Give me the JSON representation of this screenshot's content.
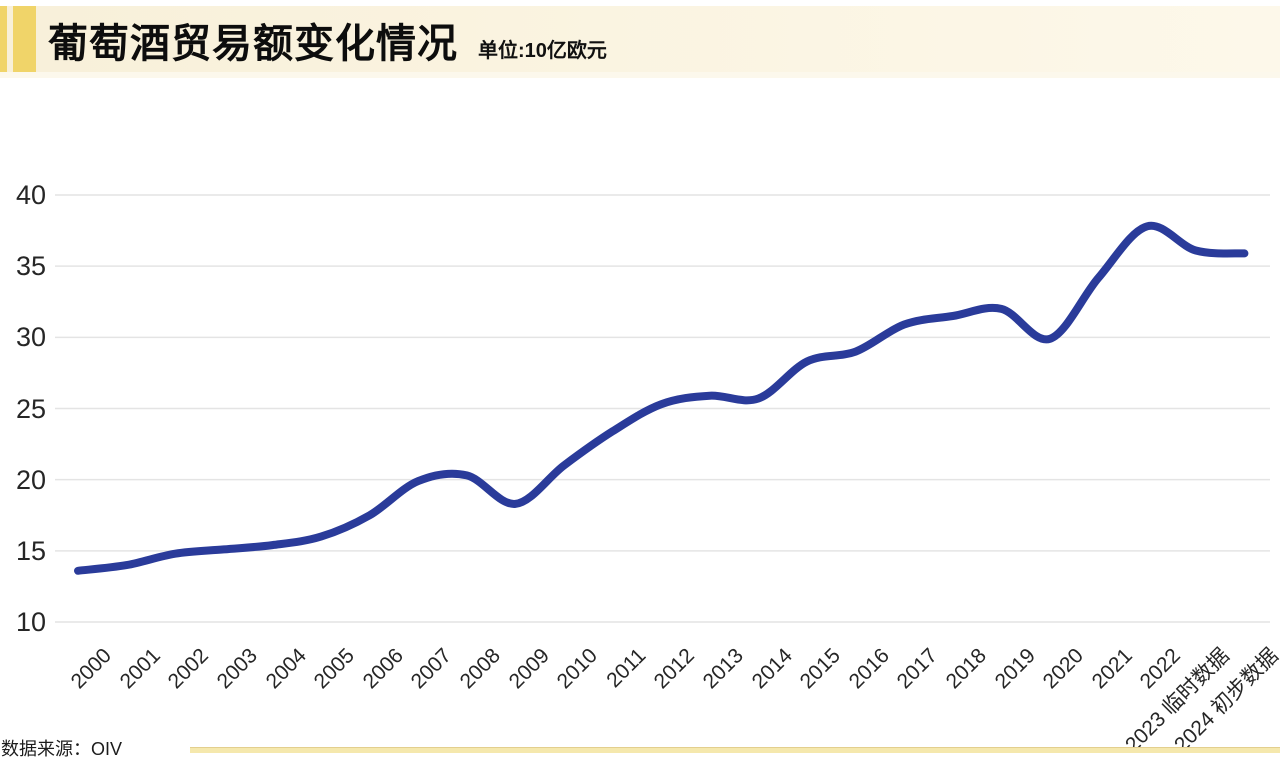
{
  "header": {
    "title": "葡萄酒贸易额变化情况",
    "unit_label": "单位:10亿欧元"
  },
  "footer": {
    "source_label": "数据来源：OIV"
  },
  "colors": {
    "accent_yellow": "#f0d469",
    "header_bg": "#f8f0d9",
    "line": "#2a3b9a",
    "grid": "#e4e4e4",
    "footer_rule": "#f5e8ad",
    "text": "#222222"
  },
  "chart_data": {
    "type": "line",
    "title": "葡萄酒贸易额变化情况",
    "unit": "10亿欧元",
    "xlabel": "",
    "ylabel": "",
    "ylim": [
      10,
      40
    ],
    "yticks": [
      40,
      35,
      30,
      25,
      20,
      15,
      10
    ],
    "grid": "horizontal",
    "legend": "none",
    "line_style": "smooth",
    "source": "OIV",
    "categories": [
      "2000",
      "2001",
      "2002",
      "2003",
      "2004",
      "2005",
      "2006",
      "2007",
      "2008",
      "2009",
      "2010",
      "2011",
      "2012",
      "2013",
      "2014",
      "2015",
      "2016",
      "2017",
      "2018",
      "2019",
      "2020",
      "2021",
      "2022",
      "2023 临时数据",
      "2024 初步数据"
    ],
    "values": [
      13.6,
      14.0,
      14.8,
      15.1,
      15.4,
      16.0,
      17.5,
      19.9,
      20.3,
      18.3,
      21.0,
      23.4,
      25.3,
      25.9,
      25.7,
      28.3,
      29.0,
      30.9,
      31.5,
      32.0,
      29.9,
      34.2,
      37.8,
      36.1,
      35.9
    ]
  }
}
